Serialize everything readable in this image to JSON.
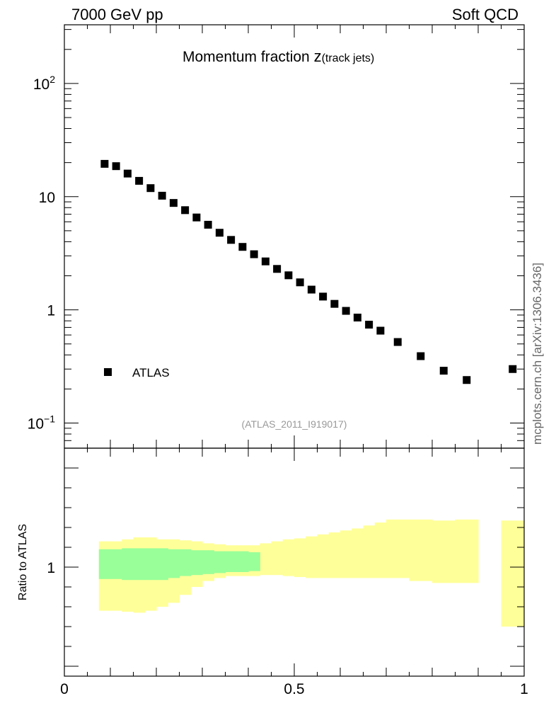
{
  "header": {
    "energy_label": "7000 GeV pp",
    "category_label": "Soft QCD"
  },
  "watermark": "mcplots.cern.ch [arXiv:1306.3436]",
  "chart_data": [
    {
      "type": "scatter",
      "title_main": "Momentum fraction ",
      "title_var": "z",
      "title_sub": "(track jets)",
      "analysis_label": "(ATLAS_2011_I919017)",
      "yscale": "log",
      "ylim": [
        0.06,
        330
      ],
      "xlim": [
        0,
        1
      ],
      "y_tick_labels": [
        {
          "value": 100,
          "base": "10",
          "exp": "2"
        },
        {
          "value": 10,
          "base": "10",
          "exp": ""
        },
        {
          "value": 1,
          "base": "1",
          "exp": ""
        },
        {
          "value": 0.1,
          "base": "10",
          "exp": "−1"
        }
      ],
      "legend": {
        "placement": "bottom-left",
        "entries": [
          "ATLAS"
        ]
      },
      "series": [
        {
          "name": "ATLAS",
          "color": "#000000",
          "marker": "square",
          "points": [
            [
              0.0875,
              19.5
            ],
            [
              0.1125,
              18.6
            ],
            [
              0.1375,
              16.0
            ],
            [
              0.1625,
              13.8
            ],
            [
              0.1875,
              11.9
            ],
            [
              0.2125,
              10.2
            ],
            [
              0.2375,
              8.8
            ],
            [
              0.2625,
              7.6
            ],
            [
              0.2875,
              6.55
            ],
            [
              0.3125,
              5.65
            ],
            [
              0.3375,
              4.8
            ],
            [
              0.3625,
              4.15
            ],
            [
              0.3875,
              3.6
            ],
            [
              0.4125,
              3.1
            ],
            [
              0.4375,
              2.68
            ],
            [
              0.4625,
              2.3
            ],
            [
              0.4875,
              2.02
            ],
            [
              0.5125,
              1.75
            ],
            [
              0.5375,
              1.51
            ],
            [
              0.5625,
              1.31
            ],
            [
              0.5875,
              1.13
            ],
            [
              0.6125,
              0.98
            ],
            [
              0.6375,
              0.855
            ],
            [
              0.6625,
              0.74
            ],
            [
              0.6875,
              0.655
            ],
            [
              0.725,
              0.52
            ],
            [
              0.775,
              0.39
            ],
            [
              0.825,
              0.29
            ],
            [
              0.875,
              0.24
            ],
            [
              0.975,
              0.3
            ]
          ]
        }
      ]
    },
    {
      "type": "area",
      "ylabel": "Ratio to ATLAS",
      "ylim": [
        0.45,
        1.6
      ],
      "xlim": [
        0,
        1
      ],
      "x_tick_labels": [
        "0",
        "0.5",
        "1"
      ],
      "y_tick_labels": [
        "1"
      ],
      "bands": [
        {
          "color": "#ffff99",
          "bins": [
            [
              0.075,
              0.1,
              0.78,
              1.13
            ],
            [
              0.1,
              0.125,
              0.78,
              1.13
            ],
            [
              0.125,
              0.15,
              0.775,
              1.14
            ],
            [
              0.15,
              0.175,
              0.77,
              1.15
            ],
            [
              0.175,
              0.2,
              0.78,
              1.15
            ],
            [
              0.2,
              0.225,
              0.8,
              1.14
            ],
            [
              0.225,
              0.25,
              0.82,
              1.14
            ],
            [
              0.25,
              0.275,
              0.86,
              1.135
            ],
            [
              0.275,
              0.3,
              0.9,
              1.13
            ],
            [
              0.3,
              0.325,
              0.93,
              1.12
            ],
            [
              0.325,
              0.35,
              0.945,
              1.115
            ],
            [
              0.35,
              0.375,
              0.955,
              1.11
            ],
            [
              0.375,
              0.4,
              0.955,
              1.11
            ],
            [
              0.4,
              0.425,
              0.955,
              1.11
            ],
            [
              0.425,
              0.45,
              0.96,
              1.12
            ],
            [
              0.45,
              0.475,
              0.96,
              1.13
            ],
            [
              0.475,
              0.5,
              0.955,
              1.14
            ],
            [
              0.5,
              0.525,
              0.95,
              1.145
            ],
            [
              0.525,
              0.55,
              0.945,
              1.155
            ],
            [
              0.55,
              0.575,
              0.945,
              1.165
            ],
            [
              0.575,
              0.6,
              0.945,
              1.175
            ],
            [
              0.6,
              0.625,
              0.945,
              1.185
            ],
            [
              0.625,
              0.65,
              0.945,
              1.195
            ],
            [
              0.65,
              0.675,
              0.945,
              1.21
            ],
            [
              0.675,
              0.7,
              0.945,
              1.225
            ],
            [
              0.7,
              0.75,
              0.945,
              1.24
            ],
            [
              0.75,
              0.8,
              0.93,
              1.24
            ],
            [
              0.8,
              0.85,
              0.92,
              1.235
            ],
            [
              0.85,
              0.9,
              0.92,
              1.24
            ],
            [
              0.95,
              1.0,
              0.7,
              1.235
            ]
          ]
        },
        {
          "color": "#99ff99",
          "bins": [
            [
              0.075,
              0.1,
              0.94,
              1.09
            ],
            [
              0.1,
              0.125,
              0.94,
              1.09
            ],
            [
              0.125,
              0.15,
              0.935,
              1.095
            ],
            [
              0.15,
              0.175,
              0.935,
              1.095
            ],
            [
              0.175,
              0.2,
              0.935,
              1.095
            ],
            [
              0.2,
              0.225,
              0.935,
              1.095
            ],
            [
              0.225,
              0.25,
              0.945,
              1.09
            ],
            [
              0.25,
              0.275,
              0.955,
              1.09
            ],
            [
              0.275,
              0.3,
              0.96,
              1.085
            ],
            [
              0.3,
              0.325,
              0.965,
              1.085
            ],
            [
              0.325,
              0.35,
              0.97,
              1.08
            ],
            [
              0.35,
              0.375,
              0.975,
              1.08
            ],
            [
              0.375,
              0.4,
              0.975,
              1.08
            ],
            [
              0.4,
              0.425,
              0.98,
              1.075
            ]
          ]
        }
      ],
      "reference_value": 1
    }
  ]
}
